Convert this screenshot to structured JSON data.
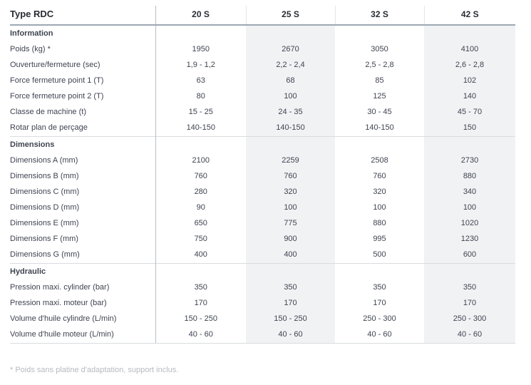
{
  "table": {
    "corner_label": "Type RDC",
    "columns": [
      "20 S",
      "25 S",
      "32 S",
      "42 S"
    ],
    "shaded_columns": [
      1,
      3
    ],
    "sections": [
      {
        "title": "Information",
        "rows": [
          {
            "label": "Poids (kg) *",
            "values": [
              "1950",
              "2670",
              "3050",
              "4100"
            ]
          },
          {
            "label": "Ouverture/fermeture (sec)",
            "values": [
              "1,9 - 1,2",
              "2,2 - 2,4",
              "2,5 - 2,8",
              "2,6 - 2,8"
            ]
          },
          {
            "label": "Force fermeture point 1 (T)",
            "values": [
              "63",
              "68",
              "85",
              "102"
            ]
          },
          {
            "label": "Force fermeture point 2 (T)",
            "values": [
              "80",
              "100",
              "125",
              "140"
            ]
          },
          {
            "label": "Classe de machine (t)",
            "values": [
              "15 - 25",
              "24 - 35",
              "30 - 45",
              "45 - 70"
            ]
          },
          {
            "label": "Rotar plan de perçage",
            "values": [
              "140-150",
              "140-150",
              "140-150",
              "150"
            ]
          }
        ]
      },
      {
        "title": "Dimensions",
        "rows": [
          {
            "label": "Dimensions A (mm)",
            "values": [
              "2100",
              "2259",
              "2508",
              "2730"
            ]
          },
          {
            "label": "Dimensions B (mm)",
            "values": [
              "760",
              "760",
              "760",
              "880"
            ]
          },
          {
            "label": "Dimensions C (mm)",
            "values": [
              "280",
              "320",
              "320",
              "340"
            ]
          },
          {
            "label": "Dimensions D (mm)",
            "values": [
              "90",
              "100",
              "100",
              "100"
            ]
          },
          {
            "label": "Dimensions E (mm)",
            "values": [
              "650",
              "775",
              "880",
              "1020"
            ]
          },
          {
            "label": "Dimensions F (mm)",
            "values": [
              "750",
              "900",
              "995",
              "1230"
            ]
          },
          {
            "label": "Dimensions G (mm)",
            "values": [
              "400",
              "400",
              "500",
              "600"
            ]
          }
        ]
      },
      {
        "title": "Hydraulic",
        "rows": [
          {
            "label": "Pression maxi. cylinder (bar)",
            "values": [
              "350",
              "350",
              "350",
              "350"
            ]
          },
          {
            "label": "Pression maxi. moteur (bar)",
            "values": [
              "170",
              "170",
              "170",
              "170"
            ]
          },
          {
            "label": "Volume d'huile cylindre (L/min)",
            "values": [
              "150 - 250",
              "150 - 250",
              "250 - 300",
              "250 - 300"
            ]
          },
          {
            "label": "Volume d'huile moteur (L/min)",
            "values": [
              "40 - 60",
              "40 - 60",
              "40 - 60",
              "40 - 60"
            ]
          }
        ]
      }
    ],
    "footnote": "* Poids sans platine d'adaptation, support inclus.",
    "colors": {
      "header_text": "#272c33",
      "body_text": "#3e4450",
      "shaded_column_bg": "#f1f2f4",
      "header_underline": "#9da8b2",
      "main_divider": "#b7bfc7",
      "light_divider": "#e4e6e8",
      "section_divider": "#d9dcde",
      "footnote_text": "#b6bac0"
    }
  }
}
